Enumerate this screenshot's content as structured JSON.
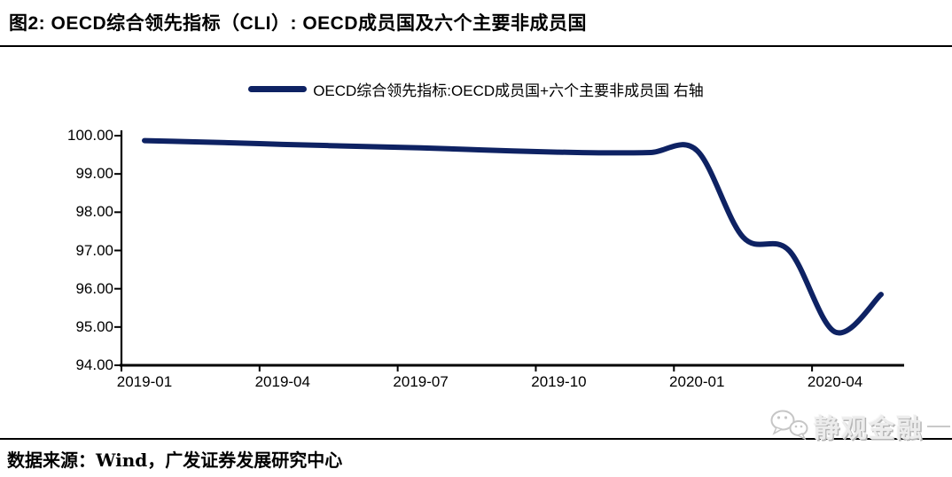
{
  "header": {
    "title": "图2:  OECD综合领先指标（CLI）:  OECD成员国及六个主要非成员国"
  },
  "legend": {
    "label": "OECD综合领先指标:OECD成员国+六个主要非成员国 右轴"
  },
  "footer": {
    "source": "数据来源：Wind，广发证券发展研究中心"
  },
  "watermark": {
    "name": "静观金融",
    "icon": "wechat-icon"
  },
  "colors": {
    "line": "#0e2263",
    "axis": "#000000",
    "text": "#000000",
    "watermark_gray": "#c6c6c6"
  },
  "chart_data": {
    "type": "line",
    "title": "OECD综合领先指标（CLI）: OECD成员国及六个主要非成员国",
    "legend_entries": [
      "OECD综合领先指标:OECD成员国+六个主要非成员国 右轴"
    ],
    "legend_position": "top",
    "grid": false,
    "axis_note": "右轴",
    "categories": [
      "2019-01",
      "2019-02",
      "2019-03",
      "2019-04",
      "2019-05",
      "2019-06",
      "2019-07",
      "2019-08",
      "2019-09",
      "2019-10",
      "2019-11",
      "2019-12",
      "2020-01",
      "2020-02",
      "2020-03",
      "2020-04",
      "2020-05"
    ],
    "series": [
      {
        "name": "OECD综合领先指标:OECD成员国+六个主要非成员国",
        "values": [
          99.87,
          99.84,
          99.81,
          99.77,
          99.74,
          99.71,
          99.68,
          99.64,
          99.6,
          99.57,
          99.55,
          99.56,
          99.61,
          97.35,
          97.0,
          94.87,
          95.85
        ]
      }
    ],
    "x_tick_labels": [
      "2019-01",
      "2019-04",
      "2019-07",
      "2019-10",
      "2020-01",
      "2020-04"
    ],
    "x_tick_every": 3,
    "y_ticks": [
      "100.00",
      "99.00",
      "98.00",
      "97.00",
      "96.00",
      "95.00",
      "94.00"
    ],
    "ylim": [
      94,
      100
    ],
    "smooth": true
  }
}
